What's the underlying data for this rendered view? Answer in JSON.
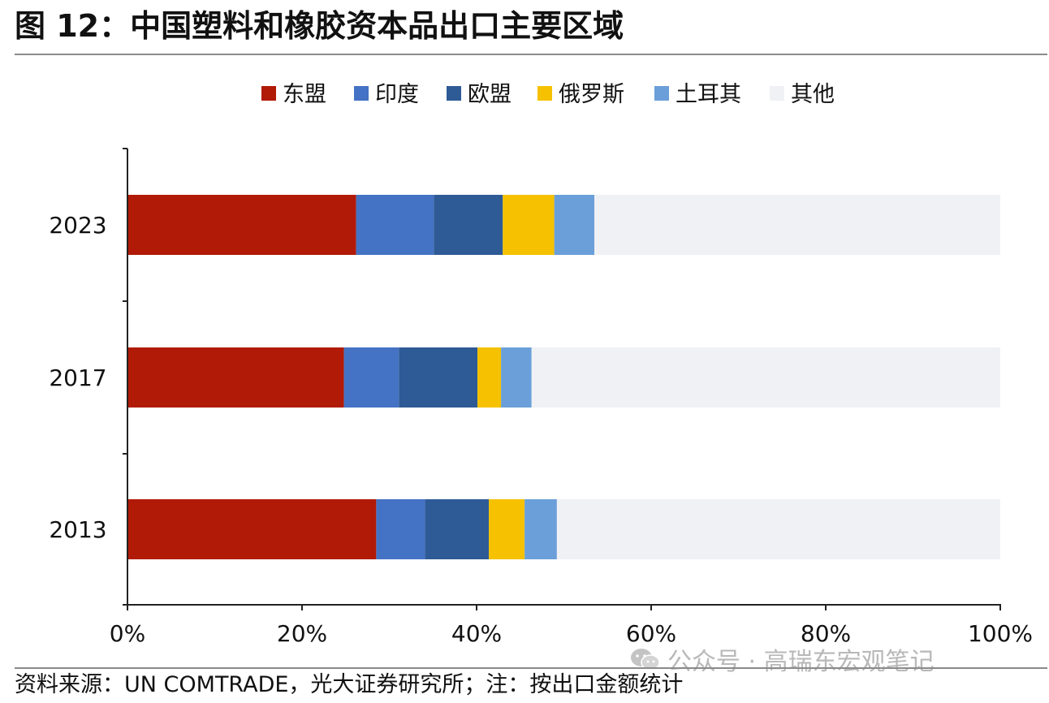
{
  "title": "图 12：中国塑料和橡胶资本品出口主要区域",
  "source": "资料来源：UN COMTRADE，光大证券研究所；注：按出口金额统计",
  "watermark": "公众号 · 高瑞东宏观笔记",
  "chart_data": {
    "type": "bar",
    "orientation": "horizontal",
    "stacked": true,
    "categories": [
      "2023",
      "2017",
      "2013"
    ],
    "series": [
      {
        "name": "东盟",
        "color": "#b01a06",
        "values": [
          26.2,
          24.8,
          28.5
        ]
      },
      {
        "name": "印度",
        "color": "#4472c4",
        "values": [
          8.9,
          6.3,
          5.6
        ]
      },
      {
        "name": "欧盟",
        "color": "#2e5a96",
        "values": [
          7.9,
          9.0,
          7.3
        ]
      },
      {
        "name": "俄罗斯",
        "color": "#f5c100",
        "values": [
          5.9,
          2.7,
          4.1
        ]
      },
      {
        "name": "土耳其",
        "color": "#6a9fd9",
        "values": [
          4.6,
          3.5,
          3.7
        ]
      },
      {
        "name": "其他",
        "color": "#f0f1f5",
        "values": [
          46.5,
          53.7,
          50.8
        ]
      }
    ],
    "x_ticks": [
      "0%",
      "20%",
      "40%",
      "60%",
      "80%",
      "100%"
    ],
    "xlim": [
      0,
      100
    ],
    "legend_position": "top",
    "grid": false
  }
}
